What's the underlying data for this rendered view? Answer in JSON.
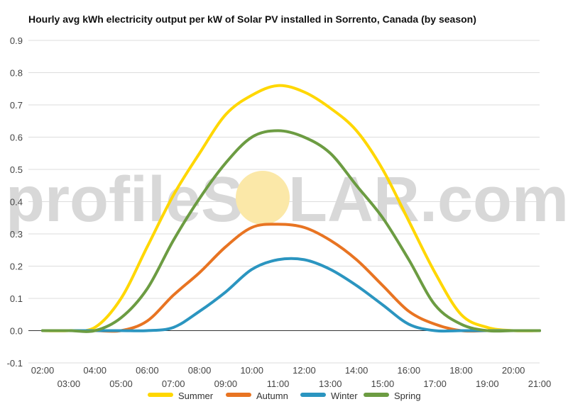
{
  "chart_data": {
    "type": "line",
    "title": "Hourly avg kWh electricity output per kW of Solar PV installed in Sorrento, Canada (by season)",
    "xlabel": "",
    "ylabel": "",
    "ylim": [
      -0.1,
      0.9
    ],
    "yticks": [
      "-0.1",
      "0.0",
      "0.1",
      "0.2",
      "0.3",
      "0.4",
      "0.5",
      "0.6",
      "0.7",
      "0.8",
      "0.9"
    ],
    "x": [
      "02:00",
      "03:00",
      "04:00",
      "05:00",
      "06:00",
      "07:00",
      "08:00",
      "09:00",
      "10:00",
      "11:00",
      "12:00",
      "13:00",
      "14:00",
      "15:00",
      "16:00",
      "17:00",
      "18:00",
      "19:00",
      "20:00",
      "21:00"
    ],
    "grid": true,
    "legend": "bottom",
    "series": [
      {
        "name": "Summer",
        "color": "#ffd700",
        "values": [
          0.0,
          0.0,
          0.01,
          0.1,
          0.26,
          0.42,
          0.55,
          0.67,
          0.73,
          0.76,
          0.74,
          0.69,
          0.62,
          0.5,
          0.34,
          0.18,
          0.05,
          0.01,
          0.0,
          0.0
        ]
      },
      {
        "name": "Autumn",
        "color": "#e87422",
        "values": [
          0.0,
          0.0,
          0.0,
          0.0,
          0.03,
          0.11,
          0.18,
          0.26,
          0.32,
          0.33,
          0.32,
          0.28,
          0.22,
          0.14,
          0.06,
          0.02,
          0.0,
          0.0,
          0.0,
          0.0
        ]
      },
      {
        "name": "Winter",
        "color": "#2b95c0",
        "values": [
          0.0,
          0.0,
          0.0,
          0.0,
          0.0,
          0.01,
          0.06,
          0.12,
          0.19,
          0.22,
          0.22,
          0.19,
          0.14,
          0.08,
          0.02,
          0.0,
          0.0,
          0.0,
          0.0,
          0.0
        ]
      },
      {
        "name": "Spring",
        "color": "#6c9c42",
        "values": [
          0.0,
          0.0,
          0.0,
          0.04,
          0.13,
          0.28,
          0.41,
          0.52,
          0.6,
          0.62,
          0.6,
          0.55,
          0.45,
          0.35,
          0.22,
          0.08,
          0.02,
          0.0,
          0.0,
          0.0
        ]
      }
    ]
  },
  "watermark": {
    "text_before": "profileS",
    "text_after": "LAR.com",
    "sun_color": "#fbe8a8"
  }
}
